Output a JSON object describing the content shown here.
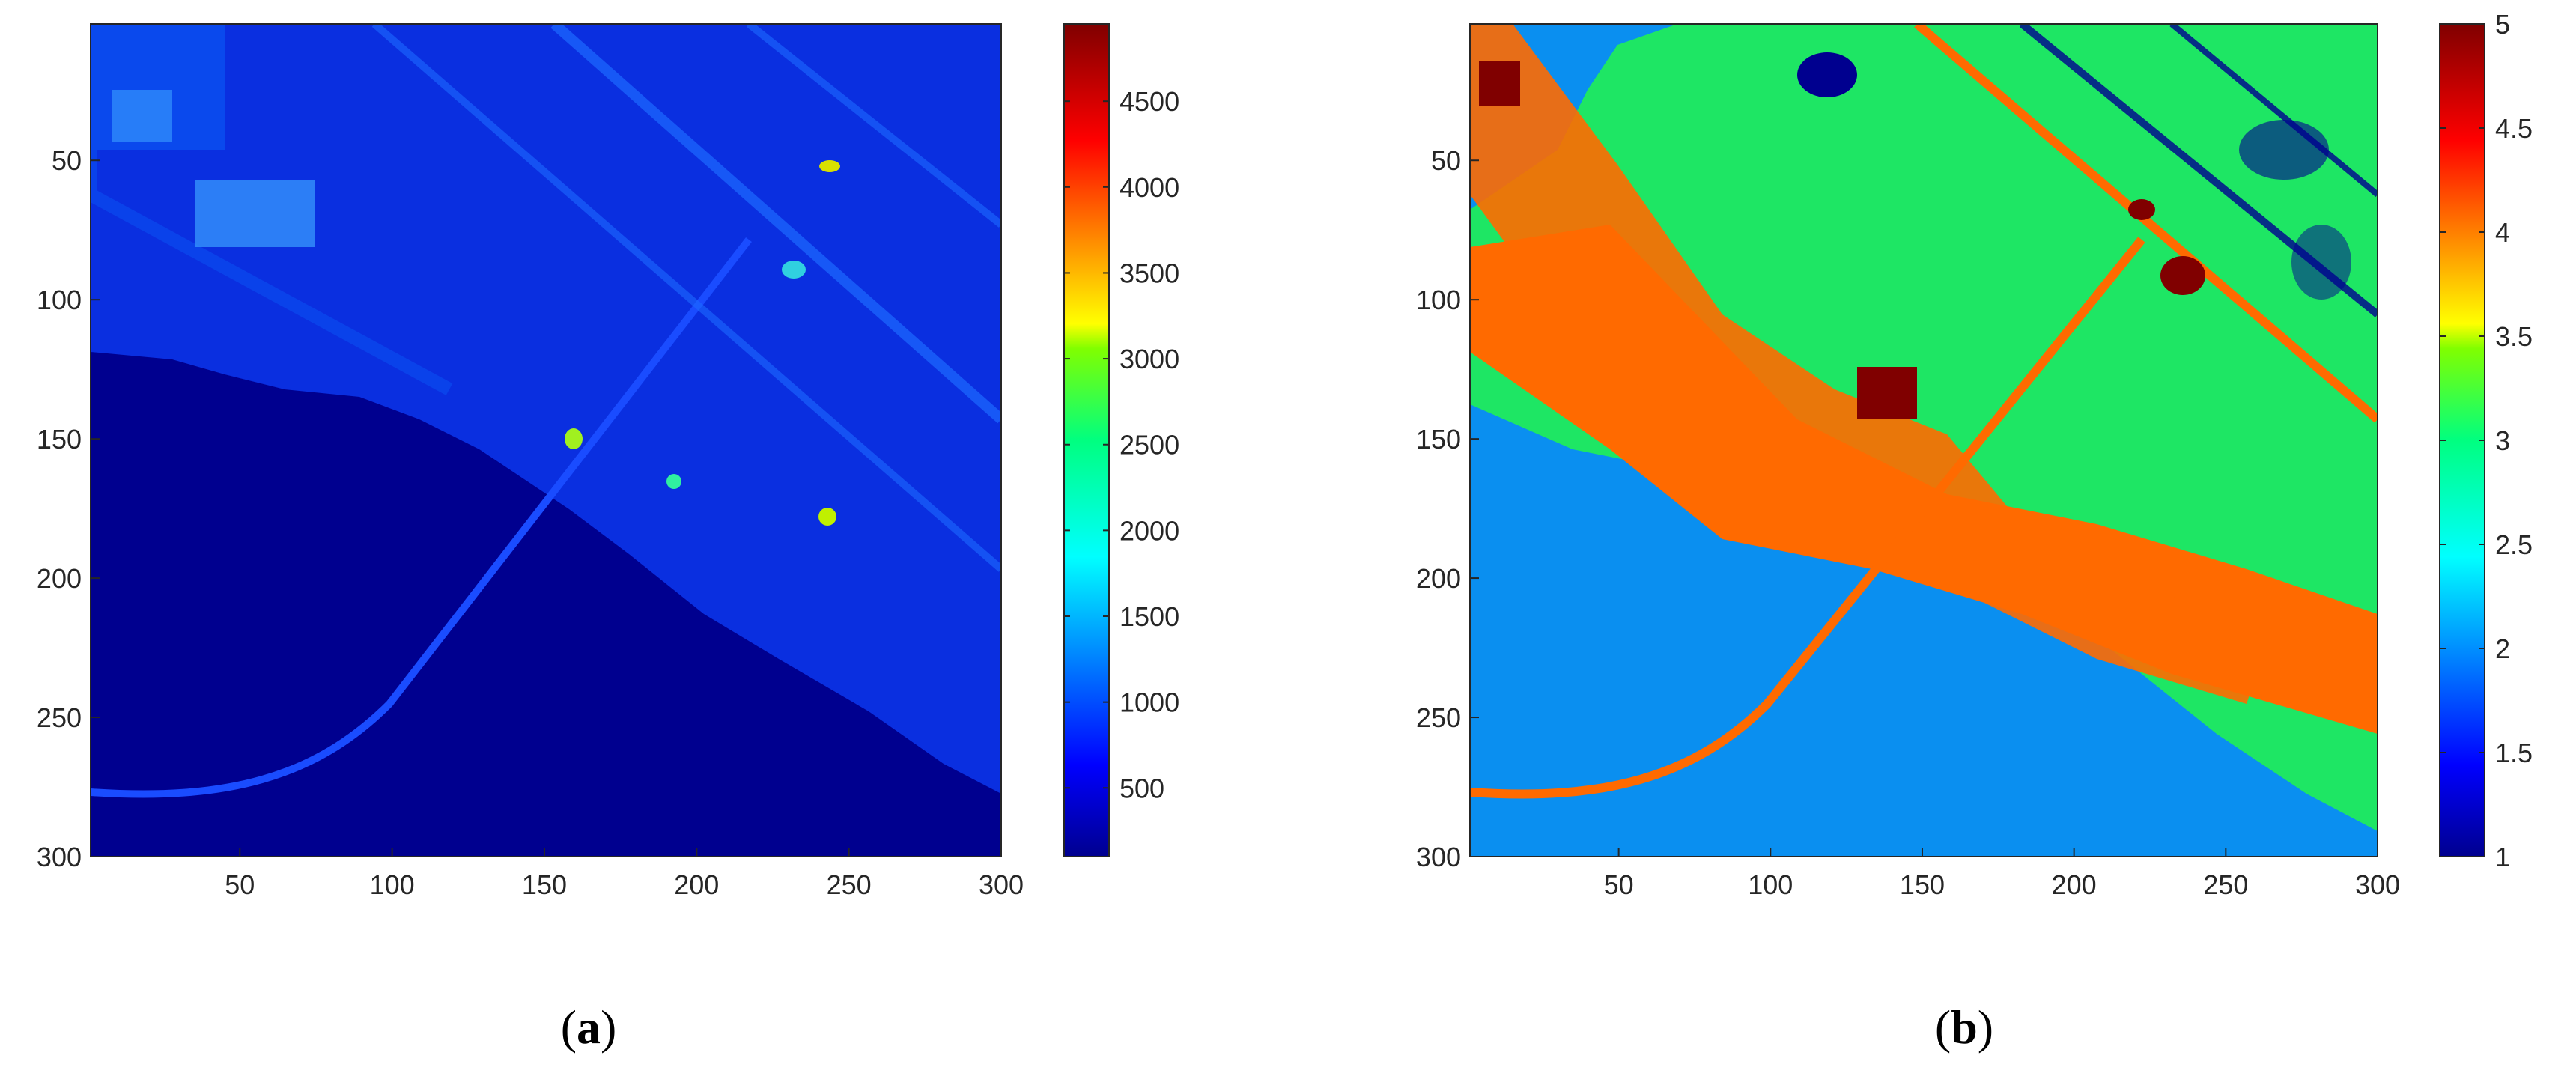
{
  "chart_data": [
    {
      "type": "heatmap",
      "panel_label": "a",
      "title": "",
      "xlabel": "",
      "ylabel": "",
      "xlim": [
        1,
        300
      ],
      "ylim": [
        1,
        300
      ],
      "x_ticks": [
        50,
        100,
        150,
        200,
        250,
        300
      ],
      "y_ticks": [
        50,
        100,
        150,
        200,
        250,
        300
      ],
      "y_reversed": true,
      "colormap": "jet",
      "colorbar": {
        "range": [
          100,
          4950
        ],
        "ticks": [
          500,
          1000,
          1500,
          2000,
          2500,
          3000,
          3500,
          4000,
          4500
        ]
      },
      "description_of_values": "pixel intensity image of harbour scene; water ~150, land 500-1500, bright spots up to ~3000"
    },
    {
      "type": "heatmap",
      "panel_label": "b",
      "title": "",
      "xlabel": "",
      "ylabel": "",
      "xlim": [
        1,
        300
      ],
      "ylim": [
        1,
        300
      ],
      "x_ticks": [
        50,
        100,
        150,
        200,
        250,
        300
      ],
      "y_ticks": [
        50,
        100,
        150,
        200,
        250,
        300
      ],
      "y_reversed": true,
      "colormap": "jet",
      "colorbar": {
        "range": [
          1,
          5
        ],
        "ticks": [
          "1",
          "1.5",
          "2",
          "2.5",
          "3",
          "3.5",
          "4",
          "4.5",
          "5"
        ]
      },
      "class_values": [
        1,
        2,
        3,
        4,
        5
      ]
    }
  ],
  "colors": {
    "water_a": "#00008f",
    "land_a": "#0a3cf0",
    "class_1": "#00008f",
    "class_2": "#0a8ff0",
    "class_3": "#1ee664",
    "class_4": "#ff6a00",
    "class_5": "#800000"
  }
}
